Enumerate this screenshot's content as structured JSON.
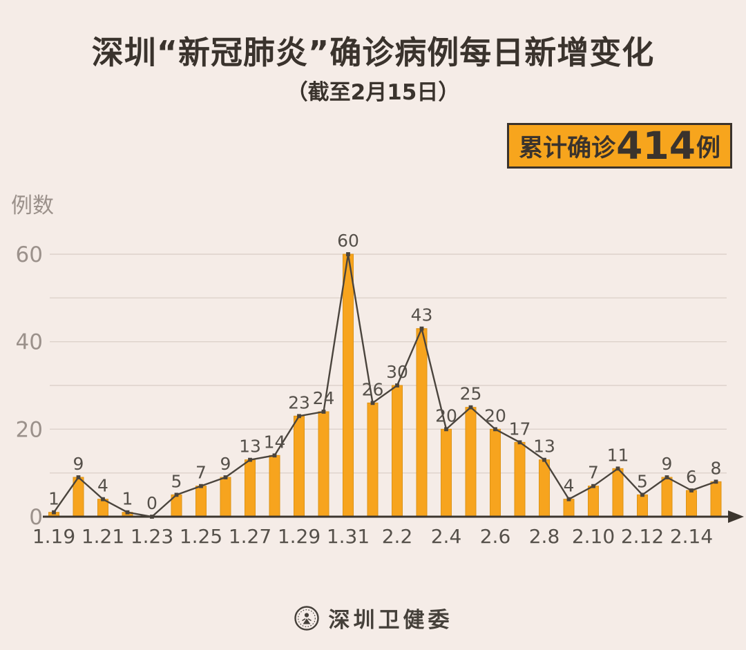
{
  "header": {
    "title": "深圳“新冠肺炎”确诊病例每日新增变化",
    "subtitle": "（截至2月15日）"
  },
  "badge": {
    "prefix": "累计确诊",
    "value": "414",
    "suffix": "例"
  },
  "footer": {
    "org": "深圳卫健委"
  },
  "colors": {
    "background": "#f5ece7",
    "bar_fill": "#f7a41e",
    "bar_stroke": "#dd9317",
    "line": "#4a443d",
    "marker": "#4a443d",
    "axis": "#3c362f",
    "gridline": "#ddd2cb",
    "y_tick_text": "#9b918b",
    "label_text": "#55504a",
    "badge_bg": "#f7a51d",
    "badge_border": "#3a332d",
    "title_text": "#3a332d"
  },
  "chart_data": {
    "type": "bar",
    "line_overlay": true,
    "title": "深圳“新冠肺炎”确诊病例每日新增变化",
    "subtitle": "（截至2月15日）",
    "categories": [
      "1.19",
      "1.20",
      "1.21",
      "1.22",
      "1.23",
      "1.24",
      "1.25",
      "1.26",
      "1.27",
      "1.28",
      "1.29",
      "1.30",
      "1.31",
      "2.1",
      "2.2",
      "2.3",
      "2.4",
      "2.5",
      "2.6",
      "2.7",
      "2.8",
      "2.9",
      "2.10",
      "2.11",
      "2.12",
      "2.13",
      "2.14",
      "2.15"
    ],
    "values": [
      1,
      9,
      4,
      1,
      0,
      5,
      7,
      9,
      13,
      14,
      23,
      24,
      60,
      26,
      30,
      43,
      20,
      25,
      20,
      17,
      13,
      4,
      7,
      11,
      5,
      9,
      6,
      8
    ],
    "total": 414,
    "xlabel": "",
    "ylabel": "例数",
    "ylim": [
      0,
      60
    ],
    "yticks": [
      0,
      20,
      40,
      60
    ],
    "grid_interval": 10,
    "grid": "horizontal",
    "x_ticks_shown": [
      "1.19",
      "1.21",
      "1.23",
      "1.25",
      "1.27",
      "1.29",
      "1.31",
      "2.2",
      "2.4",
      "2.6",
      "2.8",
      "2.10",
      "2.12",
      "2.14"
    ],
    "legend": null
  }
}
